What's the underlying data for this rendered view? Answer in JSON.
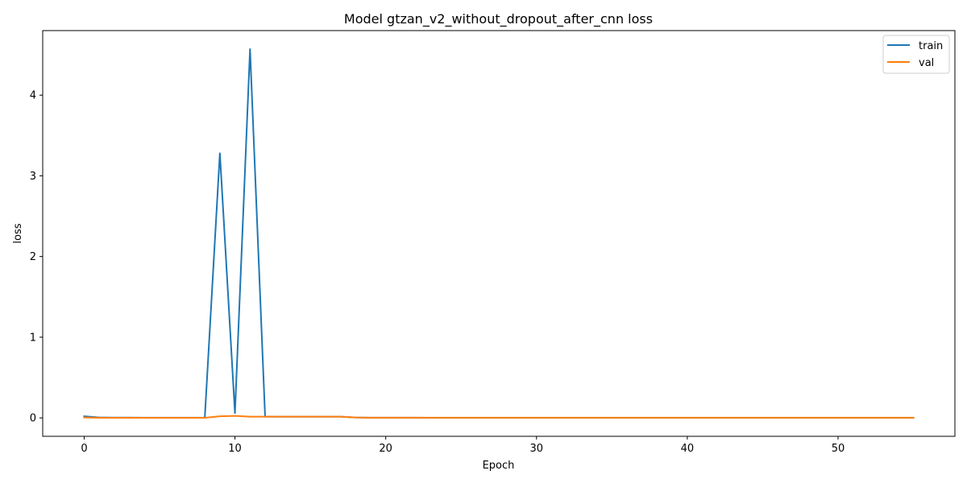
{
  "chart_data": {
    "type": "line",
    "title": "Model gtzan_v2_without_dropout_after_cnn loss",
    "xlabel": "Epoch",
    "ylabel": "loss",
    "xlim": [
      -2.75,
      57.75
    ],
    "ylim": [
      -0.228,
      4.8
    ],
    "xticks": [
      0,
      10,
      20,
      30,
      40,
      50
    ],
    "yticks": [
      0,
      1,
      2,
      3,
      4
    ],
    "grid": false,
    "legend_position": "top-right",
    "series": [
      {
        "name": "train",
        "color": "#1f77b4",
        "x": [
          0,
          1,
          2,
          3,
          4,
          5,
          6,
          7,
          8,
          9,
          10,
          11,
          12,
          13,
          14,
          15,
          16,
          17,
          18,
          19,
          20,
          21,
          22,
          23,
          24,
          25,
          26,
          27,
          28,
          29,
          30,
          31,
          32,
          33,
          34,
          35,
          36,
          37,
          38,
          39,
          40,
          41,
          42,
          43,
          44,
          45,
          46,
          47,
          48,
          49,
          50,
          51,
          52,
          53,
          54,
          55
        ],
        "values": [
          0.02,
          0.005,
          0.004,
          0.004,
          0.003,
          0.003,
          0.003,
          0.003,
          0.003,
          3.28,
          0.06,
          4.57,
          0.015,
          0.015,
          0.015,
          0.015,
          0.015,
          0.015,
          0.005,
          0.003,
          0.003,
          0.003,
          0.003,
          0.002,
          0.002,
          0.002,
          0.002,
          0.002,
          0.002,
          0.002,
          0.002,
          0.002,
          0.002,
          0.002,
          0.002,
          0.002,
          0.002,
          0.002,
          0.002,
          0.002,
          0.002,
          0.002,
          0.002,
          0.002,
          0.002,
          0.002,
          0.002,
          0.002,
          0.002,
          0.002,
          0.002,
          0.002,
          0.002,
          0.002,
          0.002,
          0.002
        ]
      },
      {
        "name": "val",
        "color": "#ff7f0e",
        "x": [
          0,
          1,
          2,
          3,
          4,
          5,
          6,
          7,
          8,
          9,
          10,
          11,
          12,
          13,
          14,
          15,
          16,
          17,
          18,
          19,
          20,
          21,
          22,
          23,
          24,
          25,
          26,
          27,
          28,
          29,
          30,
          31,
          32,
          33,
          34,
          35,
          36,
          37,
          38,
          39,
          40,
          41,
          42,
          43,
          44,
          45,
          46,
          47,
          48,
          49,
          50,
          51,
          52,
          53,
          54,
          55
        ],
        "values": [
          0.005,
          0.002,
          0.002,
          0.002,
          0.002,
          0.002,
          0.002,
          0.002,
          0.002,
          0.02,
          0.025,
          0.015,
          0.015,
          0.015,
          0.015,
          0.015,
          0.015,
          0.015,
          0.005,
          0.003,
          0.003,
          0.003,
          0.003,
          0.003,
          0.003,
          0.003,
          0.003,
          0.003,
          0.003,
          0.003,
          0.003,
          0.003,
          0.003,
          0.003,
          0.003,
          0.003,
          0.003,
          0.003,
          0.003,
          0.003,
          0.003,
          0.003,
          0.003,
          0.003,
          0.003,
          0.003,
          0.003,
          0.003,
          0.003,
          0.003,
          0.003,
          0.003,
          0.003,
          0.003,
          0.003,
          0.003
        ]
      }
    ]
  }
}
